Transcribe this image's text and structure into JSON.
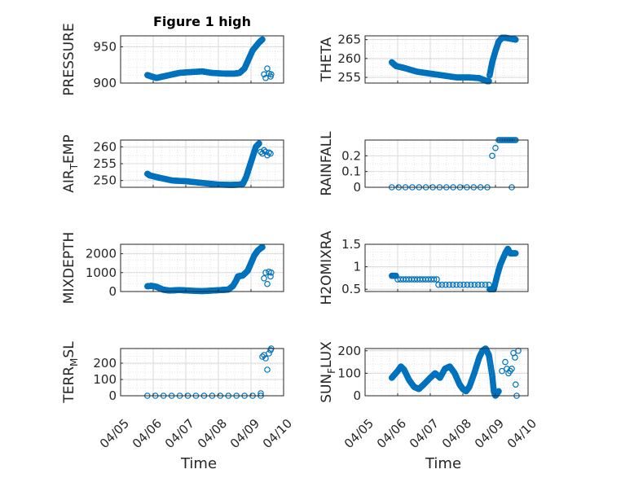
{
  "figure": {
    "title": "Figure 1 high",
    "xlabel": "Time",
    "marker_color": "#0072BD",
    "axis_color": "#262626",
    "grid_color": "#d9d9d9",
    "x_tick_labels": [
      "04/05",
      "04/06",
      "04/07",
      "04/08",
      "04/09",
      "04/10"
    ]
  },
  "chart_data": [
    {
      "type": "scatter",
      "ylabel": "PRESSURE",
      "ylim": [
        900,
        965
      ],
      "yticks": [
        900,
        950
      ],
      "xlim": [
        0,
        5
      ],
      "title": "Figure 1 high",
      "grid": true,
      "segments": [
        [
          [
            0.82,
            911
          ],
          [
            0.95,
            909
          ],
          [
            1.1,
            907
          ],
          [
            1.3,
            909
          ],
          [
            1.6,
            912
          ],
          [
            1.8,
            914
          ],
          [
            2.1,
            915
          ],
          [
            2.5,
            916
          ],
          [
            2.8,
            914
          ],
          [
            3.2,
            913
          ],
          [
            3.5,
            913
          ],
          [
            3.65,
            914
          ],
          [
            3.8,
            920
          ],
          [
            3.9,
            930
          ],
          [
            4.05,
            945
          ],
          [
            4.25,
            956
          ],
          [
            4.35,
            960
          ]
        ]
      ],
      "points": [
        [
          4.4,
          912
        ],
        [
          4.45,
          907
        ],
        [
          4.5,
          920
        ],
        [
          4.55,
          913
        ],
        [
          4.6,
          909
        ],
        [
          4.62,
          912
        ]
      ]
    },
    {
      "type": "scatter",
      "ylabel": "THETA",
      "ylim": [
        253.5,
        266
      ],
      "yticks": [
        255,
        260,
        265
      ],
      "xlim": [
        0,
        5
      ],
      "grid": true,
      "segments": [
        [
          [
            0.82,
            259
          ],
          [
            0.95,
            258
          ],
          [
            1.2,
            257.5
          ],
          [
            1.6,
            256.5
          ],
          [
            2.0,
            256
          ],
          [
            2.4,
            255.5
          ],
          [
            2.8,
            255
          ],
          [
            3.2,
            255
          ],
          [
            3.5,
            254.8
          ],
          [
            3.75,
            254
          ],
          [
            3.8,
            254
          ]
        ],
        [
          [
            3.82,
            255.5
          ],
          [
            3.9,
            259
          ],
          [
            4.0,
            262
          ],
          [
            4.1,
            264.5
          ],
          [
            4.2,
            265.5
          ],
          [
            4.3,
            265.5
          ],
          [
            4.5,
            265.2
          ],
          [
            4.62,
            265
          ]
        ]
      ],
      "points": []
    },
    {
      "type": "scatter",
      "ylabel": "AIR_TEMP",
      "ylim": [
        248,
        262
      ],
      "yticks": [
        250,
        255,
        260
      ],
      "xlim": [
        0,
        5
      ],
      "grid": true,
      "segments": [
        [
          [
            0.82,
            252
          ],
          [
            0.9,
            251.5
          ],
          [
            1.2,
            250.8
          ],
          [
            1.6,
            250
          ],
          [
            2.0,
            249.8
          ],
          [
            2.5,
            249.3
          ],
          [
            3.0,
            248.8
          ],
          [
            3.4,
            248.7
          ],
          [
            3.65,
            248.8
          ],
          [
            3.75,
            249
          ],
          [
            3.85,
            251
          ],
          [
            3.95,
            254
          ],
          [
            4.05,
            257
          ],
          [
            4.15,
            260
          ],
          [
            4.25,
            261
          ]
        ]
      ],
      "points": [
        [
          4.3,
          258.5
        ],
        [
          4.35,
          258
        ],
        [
          4.4,
          259
        ],
        [
          4.45,
          258.5
        ],
        [
          4.5,
          257.5
        ],
        [
          4.55,
          258.3
        ],
        [
          4.6,
          258
        ]
      ]
    },
    {
      "type": "scatter",
      "ylabel": "RAINFALL",
      "ylim": [
        0,
        0.3
      ],
      "yticks": [
        0,
        0.1,
        0.2
      ],
      "ytick_labels": [
        "0",
        "0.1",
        "0.2"
      ],
      "xlim": [
        0,
        5
      ],
      "grid": true,
      "segments": [
        [
          [
            0.82,
            0
          ],
          [
            3.75,
            0
          ]
        ],
        [
          [
            4.1,
            0.3
          ],
          [
            4.62,
            0.3
          ]
        ]
      ],
      "points": [
        [
          3.9,
          0.2
        ],
        [
          4.0,
          0.25
        ],
        [
          4.5,
          0
        ]
      ]
    },
    {
      "type": "scatter",
      "ylabel": "MIXDEPTH",
      "ylim": [
        0,
        2500
      ],
      "yticks": [
        0,
        1000,
        2000
      ],
      "xlim": [
        0,
        5
      ],
      "grid": true,
      "segments": [
        [
          [
            0.82,
            280
          ],
          [
            0.95,
            300
          ],
          [
            1.1,
            250
          ],
          [
            1.3,
            100
          ],
          [
            1.5,
            50
          ],
          [
            1.8,
            80
          ],
          [
            2.1,
            50
          ],
          [
            2.5,
            20
          ],
          [
            2.8,
            50
          ],
          [
            3.1,
            80
          ],
          [
            3.3,
            100
          ],
          [
            3.45,
            300
          ],
          [
            3.55,
            600
          ],
          [
            3.6,
            800
          ],
          [
            3.75,
            850
          ],
          [
            3.9,
            1100
          ],
          [
            4.0,
            1500
          ],
          [
            4.1,
            1900
          ],
          [
            4.2,
            2150
          ],
          [
            4.3,
            2300
          ],
          [
            4.35,
            2350
          ]
        ]
      ],
      "points": [
        [
          4.4,
          700
        ],
        [
          4.45,
          1000
        ],
        [
          4.5,
          400
        ],
        [
          4.55,
          1050
        ],
        [
          4.6,
          800
        ],
        [
          4.62,
          1000
        ]
      ]
    },
    {
      "type": "scatter",
      "ylabel": "H2OMIXRA",
      "ylim": [
        0.45,
        1.5
      ],
      "yticks": [
        0.5,
        1,
        1.5
      ],
      "xlim": [
        0,
        5
      ],
      "grid": true,
      "segments": [
        [
          [
            0.82,
            0.8
          ],
          [
            0.95,
            0.8
          ]
        ],
        [
          [
            1.0,
            0.72
          ],
          [
            2.2,
            0.72
          ]
        ],
        [
          [
            2.25,
            0.6
          ],
          [
            3.8,
            0.6
          ]
        ],
        [
          [
            3.82,
            0.5
          ],
          [
            3.95,
            0.5
          ],
          [
            4.05,
            0.8
          ],
          [
            4.15,
            1.05
          ],
          [
            4.3,
            1.3
          ],
          [
            4.38,
            1.4
          ],
          [
            4.45,
            1.3
          ],
          [
            4.62,
            1.3
          ]
        ]
      ],
      "points": []
    },
    {
      "type": "scatter",
      "ylabel": "TERR_MSL",
      "ylim": [
        0,
        290
      ],
      "yticks": [
        0,
        100,
        200
      ],
      "xlim": [
        0,
        5
      ],
      "grid": true,
      "segments": [
        [
          [
            0.82,
            0
          ],
          [
            4.3,
            0
          ]
        ]
      ],
      "points": [
        [
          4.3,
          15
        ],
        [
          4.35,
          240
        ],
        [
          4.4,
          250
        ],
        [
          4.45,
          230
        ],
        [
          4.5,
          160
        ],
        [
          4.55,
          260
        ],
        [
          4.6,
          280
        ],
        [
          4.62,
          300
        ]
      ]
    },
    {
      "type": "scatter",
      "ylabel": "SUN_FLUX",
      "ylim": [
        0,
        210
      ],
      "yticks": [
        0,
        100,
        200
      ],
      "xlim": [
        0,
        5
      ],
      "grid": true,
      "segments": [
        [
          [
            0.82,
            80
          ],
          [
            1.0,
            110
          ],
          [
            1.1,
            130
          ],
          [
            1.2,
            115
          ],
          [
            1.35,
            70
          ],
          [
            1.5,
            40
          ],
          [
            1.65,
            30
          ],
          [
            1.8,
            50
          ],
          [
            2.0,
            80
          ],
          [
            2.15,
            100
          ],
          [
            2.3,
            80
          ],
          [
            2.45,
            120
          ],
          [
            2.6,
            130
          ],
          [
            2.75,
            100
          ],
          [
            2.9,
            50
          ],
          [
            3.0,
            30
          ],
          [
            3.1,
            20
          ],
          [
            3.2,
            40
          ],
          [
            3.35,
            100
          ],
          [
            3.5,
            170
          ],
          [
            3.6,
            200
          ],
          [
            3.7,
            210
          ],
          [
            3.8,
            180
          ],
          [
            3.9,
            90
          ],
          [
            3.95,
            20
          ],
          [
            4.0,
            0
          ],
          [
            4.1,
            20
          ]
        ]
      ],
      "points": [
        [
          4.2,
          110
        ],
        [
          4.3,
          150
        ],
        [
          4.35,
          120
        ],
        [
          4.4,
          100
        ],
        [
          4.45,
          110
        ],
        [
          4.5,
          120
        ],
        [
          4.55,
          190
        ],
        [
          4.6,
          170
        ],
        [
          4.62,
          50
        ],
        [
          4.65,
          0
        ],
        [
          4.7,
          200
        ]
      ]
    }
  ]
}
